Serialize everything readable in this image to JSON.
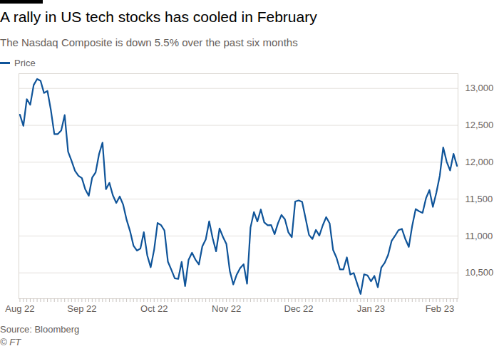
{
  "chart_data": {
    "type": "line",
    "title": "A rally in US tech stocks has cooled in February",
    "subtitle": "The Nasdaq Composite is down 5.5% over the past six months",
    "source": "Source: Bloomberg",
    "copyright": "© FT",
    "categories": [
      "Aug 22",
      null,
      null,
      null,
      null,
      null,
      null,
      null,
      null,
      null,
      null,
      null,
      null,
      null,
      null,
      null,
      null,
      null,
      "Sep 22",
      null,
      null,
      null,
      null,
      null,
      null,
      null,
      null,
      null,
      null,
      null,
      null,
      null,
      null,
      null,
      null,
      null,
      null,
      null,
      null,
      "Oct 22",
      null,
      null,
      null,
      null,
      null,
      null,
      null,
      null,
      null,
      null,
      null,
      null,
      null,
      null,
      null,
      null,
      null,
      null,
      null,
      null,
      "Nov 22",
      null,
      null,
      null,
      null,
      null,
      null,
      null,
      null,
      null,
      null,
      null,
      null,
      null,
      null,
      null,
      null,
      null,
      null,
      null,
      null,
      "Dec 22",
      null,
      null,
      null,
      null,
      null,
      null,
      null,
      null,
      null,
      null,
      null,
      null,
      null,
      null,
      null,
      null,
      null,
      null,
      null,
      null,
      "Jan 23",
      null,
      null,
      null,
      null,
      null,
      null,
      null,
      null,
      null,
      null,
      null,
      null,
      null,
      null,
      null,
      null,
      null,
      null,
      null,
      "Feb 23",
      null,
      null,
      null,
      null,
      null
    ],
    "series": [
      {
        "name": "Price",
        "color": "#0f5499",
        "values": [
          12644,
          12493,
          12855,
          12779,
          13047,
          13128,
          13103,
          12938,
          12966,
          12705,
          12381,
          12381,
          12431,
          12639,
          12141,
          12018,
          11883,
          11816,
          11785,
          11631,
          11545,
          11792,
          11862,
          12112,
          12266,
          11634,
          11720,
          11552,
          11448,
          11535,
          11425,
          11220,
          11066,
          10868,
          10802,
          10829,
          11051,
          10737,
          10576,
          10815,
          11176,
          11148,
          11074,
          10652,
          10542,
          10427,
          10418,
          10649,
          10321,
          10676,
          10773,
          10680,
          10614,
          10859,
          10953,
          11199,
          10970,
          10792,
          11102,
          10988,
          10890,
          10524,
          10343,
          10476,
          10565,
          10617,
          10353,
          11114,
          11324,
          11197,
          11359,
          11184,
          11145,
          11147,
          11024,
          11175,
          11286,
          11226,
          11050,
          10984,
          11468,
          11482,
          11462,
          11240,
          11015,
          10959,
          11082,
          11005,
          11144,
          11256,
          11171,
          10811,
          10705,
          10546,
          10547,
          10710,
          10477,
          10498,
          10354,
          10214,
          10479,
          10466,
          10386,
          10459,
          10305,
          10570,
          10636,
          10743,
          10932,
          11002,
          11079,
          11096,
          10958,
          10852,
          11140,
          11365,
          11335,
          11314,
          11512,
          11622,
          11394,
          11585,
          11816,
          12201,
          12007,
          11888,
          12114,
          11950
        ]
      }
    ],
    "ylim": [
      10150,
      13200
    ],
    "yticks": [
      10500,
      11000,
      11500,
      12000,
      12500,
      13000
    ],
    "grid": true,
    "legend": "top-left"
  }
}
